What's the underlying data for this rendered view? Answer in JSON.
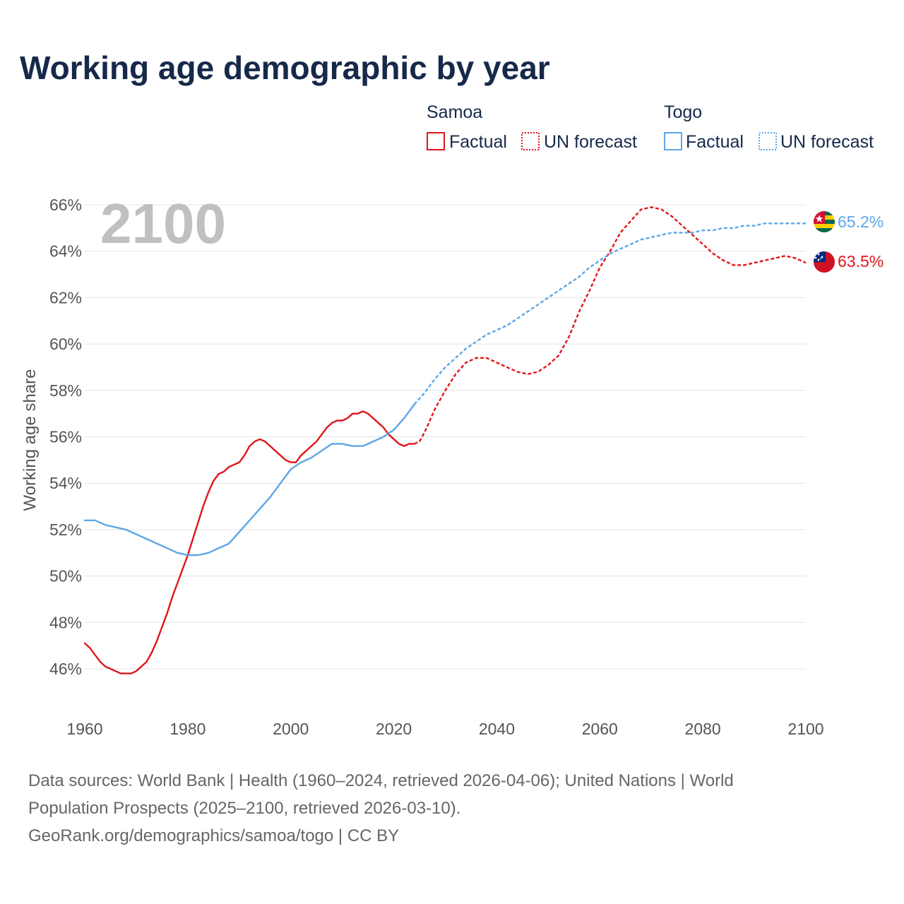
{
  "footer": {
    "sources_line1": "Data sources: World Bank | Health (1960–2024, retrieved 2026-04-06); United Nations | World",
    "sources_line2": "Population Prospects (2025–2100, retrieved 2026-03-10).",
    "credit": "GeoRank.org/demographics/samoa/togo | CC BY"
  },
  "chart_data": {
    "type": "line",
    "title": "Working age demographic by year",
    "ylabel": "Working age share",
    "xlabel": "",
    "watermark_year": "2100",
    "xlim": [
      1960,
      2100
    ],
    "ylim": [
      44.4,
      66
    ],
    "x_ticks": [
      1960,
      1980,
      2000,
      2020,
      2040,
      2060,
      2080,
      2100
    ],
    "x_tick_labels": [
      "1960",
      "1980",
      "2000",
      "2020",
      "2040",
      "2060",
      "2080",
      "2100"
    ],
    "y_ticks": [
      46,
      48,
      50,
      52,
      54,
      56,
      58,
      60,
      62,
      64,
      66
    ],
    "y_tick_labels": [
      "46%",
      "48%",
      "50%",
      "52%",
      "54%",
      "56%",
      "58%",
      "60%",
      "62%",
      "64%",
      "66%"
    ],
    "grid": true,
    "legend_position": "top-right",
    "legend": {
      "groups": [
        {
          "name": "Samoa",
          "factual_label": "Factual",
          "forecast_label": "UN forecast",
          "color": "#e0161b"
        },
        {
          "name": "Togo",
          "factual_label": "Factual",
          "forecast_label": "UN forecast",
          "color": "#5ea6e6"
        }
      ]
    },
    "series": [
      {
        "name": "Samoa",
        "color": "#e0161b",
        "end_label": "63.5%",
        "factual": [
          [
            1960,
            47.1
          ],
          [
            1961,
            46.9
          ],
          [
            1962,
            46.6
          ],
          [
            1963,
            46.3
          ],
          [
            1964,
            46.1
          ],
          [
            1965,
            46.0
          ],
          [
            1966,
            45.9
          ],
          [
            1967,
            45.8
          ],
          [
            1968,
            45.8
          ],
          [
            1969,
            45.8
          ],
          [
            1970,
            45.9
          ],
          [
            1971,
            46.1
          ],
          [
            1972,
            46.3
          ],
          [
            1973,
            46.7
          ],
          [
            1974,
            47.2
          ],
          [
            1975,
            47.8
          ],
          [
            1976,
            48.4
          ],
          [
            1977,
            49.1
          ],
          [
            1978,
            49.7
          ],
          [
            1979,
            50.3
          ],
          [
            1980,
            50.9
          ],
          [
            1981,
            51.6
          ],
          [
            1982,
            52.3
          ],
          [
            1983,
            53.0
          ],
          [
            1984,
            53.6
          ],
          [
            1985,
            54.1
          ],
          [
            1986,
            54.4
          ],
          [
            1987,
            54.5
          ],
          [
            1988,
            54.7
          ],
          [
            1989,
            54.8
          ],
          [
            1990,
            54.9
          ],
          [
            1991,
            55.2
          ],
          [
            1992,
            55.6
          ],
          [
            1993,
            55.8
          ],
          [
            1994,
            55.9
          ],
          [
            1995,
            55.8
          ],
          [
            1996,
            55.6
          ],
          [
            1997,
            55.4
          ],
          [
            1998,
            55.2
          ],
          [
            1999,
            55.0
          ],
          [
            2000,
            54.9
          ],
          [
            2001,
            54.9
          ],
          [
            2002,
            55.2
          ],
          [
            2003,
            55.4
          ],
          [
            2004,
            55.6
          ],
          [
            2005,
            55.8
          ],
          [
            2006,
            56.1
          ],
          [
            2007,
            56.4
          ],
          [
            2008,
            56.6
          ],
          [
            2009,
            56.7
          ],
          [
            2010,
            56.7
          ],
          [
            2011,
            56.8
          ],
          [
            2012,
            57.0
          ],
          [
            2013,
            57.0
          ],
          [
            2014,
            57.1
          ],
          [
            2015,
            57.0
          ],
          [
            2016,
            56.8
          ],
          [
            2017,
            56.6
          ],
          [
            2018,
            56.4
          ],
          [
            2019,
            56.1
          ],
          [
            2020,
            55.9
          ],
          [
            2021,
            55.7
          ],
          [
            2022,
            55.6
          ],
          [
            2023,
            55.7
          ],
          [
            2024,
            55.7
          ]
        ],
        "forecast": [
          [
            2024,
            55.7
          ],
          [
            2025,
            55.8
          ],
          [
            2026,
            56.2
          ],
          [
            2027,
            56.7
          ],
          [
            2028,
            57.2
          ],
          [
            2029,
            57.6
          ],
          [
            2030,
            58.0
          ],
          [
            2032,
            58.7
          ],
          [
            2034,
            59.2
          ],
          [
            2036,
            59.4
          ],
          [
            2038,
            59.4
          ],
          [
            2040,
            59.2
          ],
          [
            2042,
            59.0
          ],
          [
            2044,
            58.8
          ],
          [
            2046,
            58.7
          ],
          [
            2048,
            58.8
          ],
          [
            2050,
            59.1
          ],
          [
            2052,
            59.5
          ],
          [
            2054,
            60.3
          ],
          [
            2056,
            61.4
          ],
          [
            2058,
            62.3
          ],
          [
            2060,
            63.3
          ],
          [
            2062,
            64.0
          ],
          [
            2064,
            64.8
          ],
          [
            2066,
            65.3
          ],
          [
            2068,
            65.8
          ],
          [
            2070,
            65.9
          ],
          [
            2072,
            65.8
          ],
          [
            2074,
            65.5
          ],
          [
            2076,
            65.1
          ],
          [
            2078,
            64.7
          ],
          [
            2080,
            64.3
          ],
          [
            2082,
            63.9
          ],
          [
            2084,
            63.6
          ],
          [
            2086,
            63.4
          ],
          [
            2088,
            63.4
          ],
          [
            2090,
            63.5
          ],
          [
            2092,
            63.6
          ],
          [
            2094,
            63.7
          ],
          [
            2096,
            63.8
          ],
          [
            2098,
            63.7
          ],
          [
            2100,
            63.5
          ]
        ]
      },
      {
        "name": "Togo",
        "color": "#5ea6e6",
        "end_label": "65.2%",
        "factual": [
          [
            1960,
            52.4
          ],
          [
            1962,
            52.4
          ],
          [
            1964,
            52.2
          ],
          [
            1966,
            52.1
          ],
          [
            1968,
            52.0
          ],
          [
            1970,
            51.8
          ],
          [
            1972,
            51.6
          ],
          [
            1974,
            51.4
          ],
          [
            1976,
            51.2
          ],
          [
            1978,
            51.0
          ],
          [
            1980,
            50.9
          ],
          [
            1982,
            50.9
          ],
          [
            1984,
            51.0
          ],
          [
            1986,
            51.2
          ],
          [
            1988,
            51.4
          ],
          [
            1990,
            51.9
          ],
          [
            1992,
            52.4
          ],
          [
            1994,
            52.9
          ],
          [
            1996,
            53.4
          ],
          [
            1998,
            54.0
          ],
          [
            2000,
            54.6
          ],
          [
            2002,
            54.9
          ],
          [
            2004,
            55.1
          ],
          [
            2006,
            55.4
          ],
          [
            2008,
            55.7
          ],
          [
            2010,
            55.7
          ],
          [
            2012,
            55.6
          ],
          [
            2014,
            55.6
          ],
          [
            2016,
            55.8
          ],
          [
            2018,
            56.0
          ],
          [
            2020,
            56.3
          ],
          [
            2022,
            56.8
          ],
          [
            2024,
            57.4
          ]
        ],
        "forecast": [
          [
            2024,
            57.4
          ],
          [
            2026,
            57.9
          ],
          [
            2028,
            58.5
          ],
          [
            2030,
            59.0
          ],
          [
            2032,
            59.4
          ],
          [
            2034,
            59.8
          ],
          [
            2036,
            60.1
          ],
          [
            2038,
            60.4
          ],
          [
            2040,
            60.6
          ],
          [
            2042,
            60.8
          ],
          [
            2044,
            61.1
          ],
          [
            2046,
            61.4
          ],
          [
            2048,
            61.7
          ],
          [
            2050,
            62.0
          ],
          [
            2052,
            62.3
          ],
          [
            2054,
            62.6
          ],
          [
            2056,
            62.9
          ],
          [
            2058,
            63.3
          ],
          [
            2060,
            63.6
          ],
          [
            2062,
            63.9
          ],
          [
            2064,
            64.1
          ],
          [
            2066,
            64.3
          ],
          [
            2068,
            64.5
          ],
          [
            2070,
            64.6
          ],
          [
            2072,
            64.7
          ],
          [
            2074,
            64.8
          ],
          [
            2076,
            64.8
          ],
          [
            2078,
            64.8
          ],
          [
            2080,
            64.9
          ],
          [
            2082,
            64.9
          ],
          [
            2084,
            65.0
          ],
          [
            2086,
            65.0
          ],
          [
            2088,
            65.1
          ],
          [
            2090,
            65.1
          ],
          [
            2092,
            65.2
          ],
          [
            2094,
            65.2
          ],
          [
            2096,
            65.2
          ],
          [
            2098,
            65.2
          ],
          [
            2100,
            65.2
          ]
        ]
      }
    ]
  }
}
